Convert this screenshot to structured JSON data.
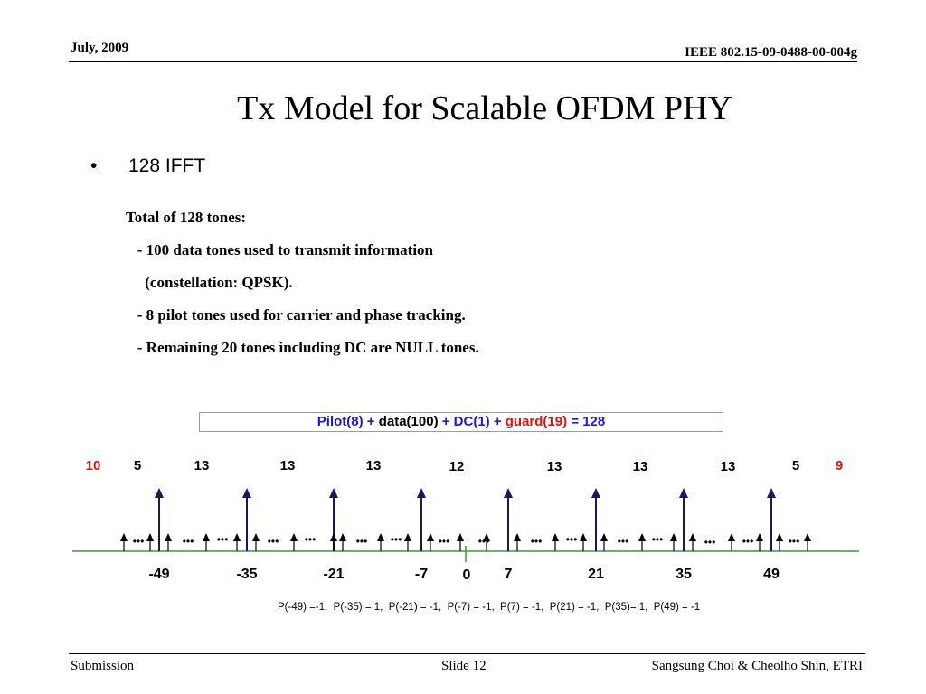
{
  "header": {
    "date": "July,  2009",
    "doc_id": "IEEE 802.15-09-0488-00-004g"
  },
  "title": "Tx Model for Scalable OFDM PHY",
  "bullet": {
    "marker": "•",
    "text": "128 IFFT"
  },
  "notes": [
    "Total of 128 tones:",
    "   - 100 data tones used to transmit information",
    "     (constellation: QPSK).",
    "   - 8 pilot tones used for carrier and phase tracking.",
    "   - Remaining 20 tones including DC are NULL tones."
  ],
  "formula": [
    {
      "text": "Pilot(8) + ",
      "color": "#1a1acc"
    },
    {
      "text": "data(100)",
      "color": "#000000"
    },
    {
      "text": " + DC(1) + ",
      "color": "#1a1acc"
    },
    {
      "text": "guard(19)",
      "color": "#e01010"
    },
    {
      "text": " = 128",
      "color": "#1a1acc"
    }
  ],
  "diagram": {
    "group_counts": [
      {
        "label": "10",
        "color": "#e01010"
      },
      {
        "label": "5",
        "color": "#000000"
      },
      {
        "label": "13",
        "color": "#000000"
      },
      {
        "label": "13",
        "color": "#000000"
      },
      {
        "label": "13",
        "color": "#000000"
      },
      {
        "label": "12",
        "color": "#000000"
      },
      {
        "label": "13",
        "color": "#000000"
      },
      {
        "label": "13",
        "color": "#000000"
      },
      {
        "label": "13",
        "color": "#000000"
      },
      {
        "label": "5",
        "color": "#000000"
      },
      {
        "label": "9",
        "color": "#e01010"
      }
    ],
    "pilot_positions": [
      "-49",
      "-35",
      "-21",
      "-7",
      "7",
      "21",
      "35",
      "49"
    ],
    "dc_label": "0",
    "axis_color": "#3a9a3a",
    "pilot_color": "#1a1a5a",
    "ellipsis": "•••"
  },
  "pilot_values": "P(-49) =-1,  P(-35) = 1,  P(-21) = -1,  P(-7) = -1,  P(7) = -1,  P(21) = -1,  P(35)= 1,  P(49) = -1",
  "footer": {
    "left": "Submission",
    "center": "Slide 12",
    "right": "Sangsung Choi & Cheolho Shin, ETRI"
  }
}
